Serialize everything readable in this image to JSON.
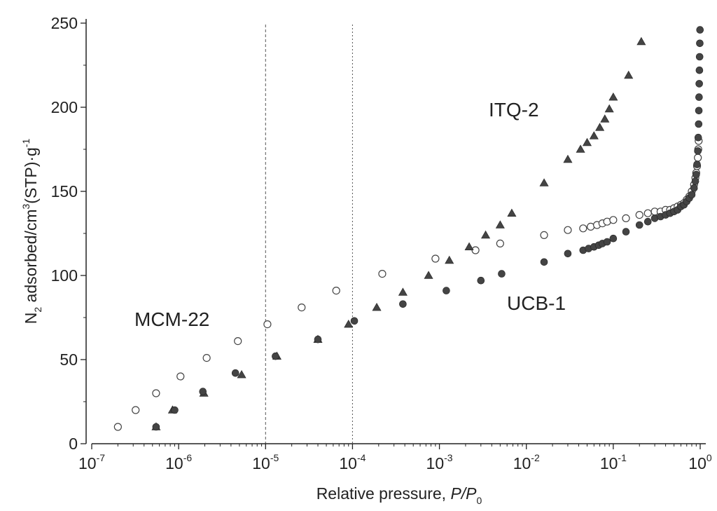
{
  "chart_data": {
    "type": "scatter",
    "title": "",
    "xlabel": {
      "main": "Relative pressure, ",
      "italic_p": "P",
      "slash": "/",
      "italic_p0": "P",
      "sub": "0"
    },
    "ylabel": {
      "n": "N",
      "sub2": "2",
      "mid": " adsorbed/cm",
      "sup3": "3",
      "tail": "(STP)·g",
      "supm1": "-1"
    },
    "x_scale": "log",
    "xlim": [
      1e-07,
      1
    ],
    "ylim": [
      0,
      250
    ],
    "x_ticks": [
      {
        "base": "10",
        "exp": "-7",
        "value": 1e-07
      },
      {
        "base": "10",
        "exp": "-6",
        "value": 1e-06
      },
      {
        "base": "10",
        "exp": "-5",
        "value": 1e-05
      },
      {
        "base": "10",
        "exp": "-4",
        "value": 0.0001
      },
      {
        "base": "10",
        "exp": "-3",
        "value": 0.001
      },
      {
        "base": "10",
        "exp": "-2",
        "value": 0.01
      },
      {
        "base": "10",
        "exp": "-1",
        "value": 0.1
      },
      {
        "base": "10",
        "exp": "0",
        "value": 1
      }
    ],
    "y_ticks": [
      "0",
      "50",
      "100",
      "150",
      "200",
      "250"
    ],
    "reference_lines_x": [
      1e-05,
      0.0001
    ],
    "grid": false,
    "legend": "none",
    "series": [
      {
        "name": "MCM-22",
        "marker": "open-circle",
        "color": "#444444",
        "points": [
          [
            2e-07,
            10
          ],
          [
            3.2e-07,
            20
          ],
          [
            5.5e-07,
            30
          ],
          [
            1.05e-06,
            40
          ],
          [
            2.1e-06,
            51
          ],
          [
            4.8e-06,
            61
          ],
          [
            1.05e-05,
            71
          ],
          [
            2.6e-05,
            81
          ],
          [
            6.5e-05,
            91
          ],
          [
            0.00022,
            101
          ],
          [
            0.0009,
            110
          ],
          [
            0.0026,
            115
          ],
          [
            0.005,
            119
          ],
          [
            0.016,
            124
          ],
          [
            0.03,
            127
          ],
          [
            0.045,
            128
          ],
          [
            0.055,
            129
          ],
          [
            0.065,
            130
          ],
          [
            0.075,
            131
          ],
          [
            0.085,
            132
          ],
          [
            0.1,
            133
          ],
          [
            0.14,
            134
          ],
          [
            0.2,
            136
          ],
          [
            0.25,
            137
          ],
          [
            0.3,
            138
          ],
          [
            0.35,
            138
          ],
          [
            0.4,
            139
          ],
          [
            0.45,
            139
          ],
          [
            0.5,
            140
          ],
          [
            0.55,
            141
          ],
          [
            0.6,
            142
          ],
          [
            0.65,
            143
          ],
          [
            0.7,
            145
          ],
          [
            0.75,
            147
          ],
          [
            0.8,
            150
          ],
          [
            0.85,
            154
          ],
          [
            0.88,
            158
          ],
          [
            0.9,
            161
          ],
          [
            0.92,
            165
          ],
          [
            0.94,
            170
          ],
          [
            0.95,
            175
          ],
          [
            0.96,
            180
          ]
        ]
      },
      {
        "name": "ITQ-2",
        "marker": "filled-triangle",
        "color": "#444444",
        "points": [
          [
            5.5e-07,
            10
          ],
          [
            8.5e-07,
            20
          ],
          [
            1.95e-06,
            30
          ],
          [
            5.3e-06,
            41
          ],
          [
            1.35e-05,
            52
          ],
          [
            4e-05,
            62
          ],
          [
            9e-05,
            71
          ],
          [
            0.00019,
            81
          ],
          [
            0.00038,
            90
          ],
          [
            0.00075,
            100
          ],
          [
            0.0013,
            109
          ],
          [
            0.0022,
            117
          ],
          [
            0.0034,
            124
          ],
          [
            0.005,
            130
          ],
          [
            0.0068,
            137
          ],
          [
            0.016,
            155
          ],
          [
            0.03,
            169
          ],
          [
            0.042,
            175
          ],
          [
            0.05,
            179
          ],
          [
            0.06,
            183
          ],
          [
            0.07,
            188
          ],
          [
            0.08,
            193
          ],
          [
            0.09,
            199
          ],
          [
            0.1,
            206
          ],
          [
            0.15,
            219
          ],
          [
            0.21,
            239
          ]
        ]
      },
      {
        "name": "UCB-1",
        "marker": "filled-circle",
        "color": "#444444",
        "points": [
          [
            5.5e-07,
            10
          ],
          [
            9e-07,
            20
          ],
          [
            1.9e-06,
            31
          ],
          [
            4.5e-06,
            42
          ],
          [
            1.3e-05,
            52
          ],
          [
            4e-05,
            62
          ],
          [
            0.000105,
            73
          ],
          [
            0.00038,
            83
          ],
          [
            0.0012,
            91
          ],
          [
            0.003,
            97
          ],
          [
            0.0052,
            101
          ],
          [
            0.016,
            108
          ],
          [
            0.03,
            113
          ],
          [
            0.045,
            115
          ],
          [
            0.052,
            116
          ],
          [
            0.06,
            117
          ],
          [
            0.068,
            118
          ],
          [
            0.075,
            119
          ],
          [
            0.085,
            120
          ],
          [
            0.1,
            122
          ],
          [
            0.14,
            126
          ],
          [
            0.2,
            130
          ],
          [
            0.25,
            132
          ],
          [
            0.3,
            134
          ],
          [
            0.35,
            135
          ],
          [
            0.4,
            136
          ],
          [
            0.45,
            137
          ],
          [
            0.5,
            138
          ],
          [
            0.55,
            139
          ],
          [
            0.6,
            141
          ],
          [
            0.65,
            142
          ],
          [
            0.7,
            144
          ],
          [
            0.75,
            146
          ],
          [
            0.8,
            148
          ],
          [
            0.85,
            152
          ],
          [
            0.88,
            156
          ],
          [
            0.9,
            160
          ],
          [
            0.92,
            166
          ],
          [
            0.94,
            174
          ],
          [
            0.95,
            182
          ],
          [
            0.96,
            190
          ],
          [
            0.965,
            198
          ],
          [
            0.97,
            206
          ],
          [
            0.975,
            214
          ],
          [
            0.98,
            222
          ],
          [
            0.985,
            230
          ],
          [
            0.99,
            238
          ],
          [
            0.995,
            246
          ]
        ]
      }
    ],
    "annotations": [
      {
        "text": "MCM-22",
        "series": "MCM-22"
      },
      {
        "text": "ITQ-2",
        "series": "ITQ-2"
      },
      {
        "text": "UCB-1",
        "series": "UCB-1"
      }
    ]
  }
}
